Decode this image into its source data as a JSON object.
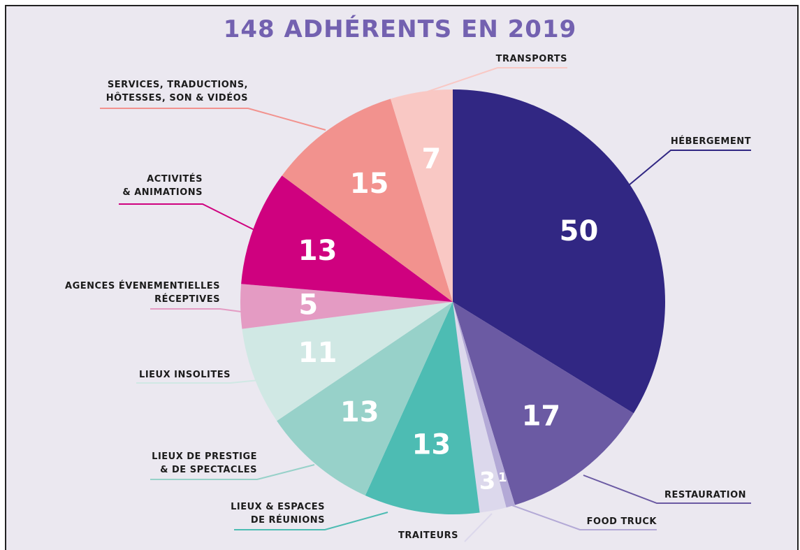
{
  "chart_data": {
    "type": "pie",
    "title": "148 ADHÉRENTS EN 2019",
    "categories": [
      "HÉBERGEMENT",
      "RESTAURATION",
      "FOOD TRUCK",
      "TRAITEURS",
      "LIEUX & ESPACES\nDE RÉUNIONS",
      "LIEUX DE PRESTIGE\n& DE SPECTACLES",
      "LIEUX INSOLITES",
      "AGENCES ÉVENEMENTIELLES\nRÉCEPTIVES",
      "ACTIVITÉS\n& ANIMATIONS",
      "SERVICES, TRADUCTIONS,\nHÔTESSES, SON & VIDÉOS",
      "TRANSPORTS"
    ],
    "values": [
      50,
      17,
      1,
      3,
      13,
      13,
      11,
      5,
      13,
      15,
      7
    ],
    "colors": [
      "#312783",
      "#6b5aa3",
      "#b3a9d6",
      "#dcd8ec",
      "#4dbcb3",
      "#97d1c9",
      "#d0e8e4",
      "#e49bc3",
      "#cf017f",
      "#f2928e",
      "#f9c8c4"
    ]
  }
}
